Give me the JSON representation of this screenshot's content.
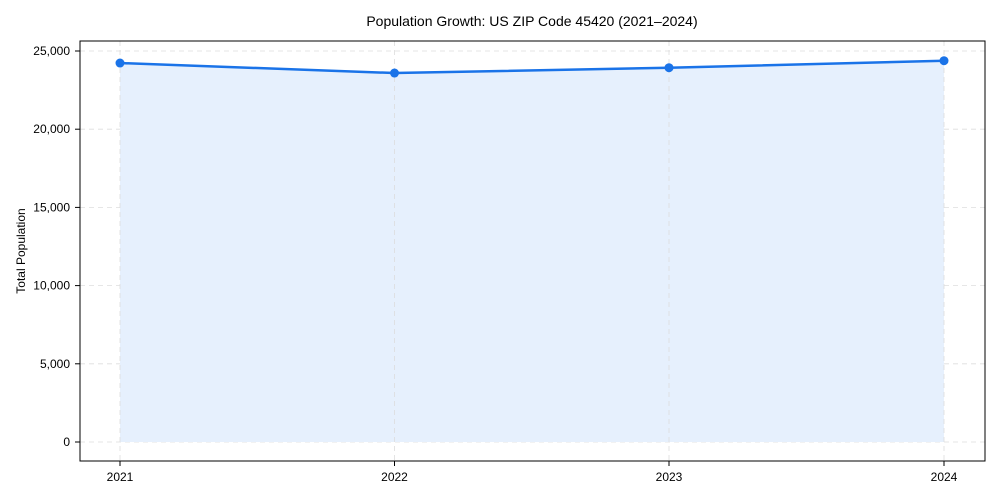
{
  "chart_data": {
    "type": "area",
    "title": "Population Growth: US ZIP Code 45420 (2021–2024)",
    "xlabel": "",
    "ylabel": "Total Population",
    "categories": [
      "2021",
      "2022",
      "2023",
      "2024"
    ],
    "series": [
      {
        "name": "Total Population",
        "values": [
          24230,
          23590,
          23930,
          24380
        ]
      }
    ],
    "ylim": [
      -1200,
      26200
    ],
    "yticks": [
      0,
      5000,
      10000,
      15000,
      20000,
      25000
    ],
    "ytick_labels": [
      "0",
      "5,000",
      "10,000",
      "15,000",
      "20,000",
      "25,000"
    ],
    "grid": true,
    "legend": "none",
    "colors": {
      "line": "#1a73e8",
      "fill": "#e6f0fd",
      "grid": "#dddddd"
    }
  }
}
